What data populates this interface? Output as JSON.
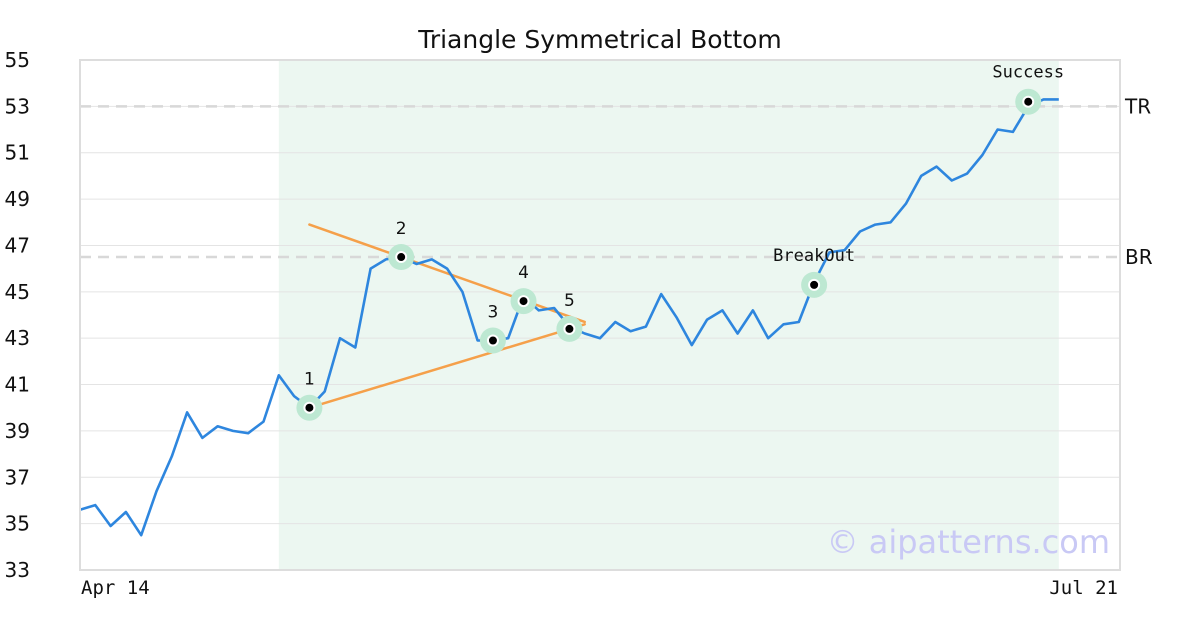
{
  "watermark": "© aipatterns.com",
  "colors": {
    "price": "#2e86de",
    "trendline": "#f5a04a",
    "highlight": "#ecf7f1",
    "marker_glow": "#bde8d2",
    "grid": "#e4e4e4",
    "level_line": "#d8d8d8",
    "frame": "#dddddd",
    "watermark": "#c9c9f5"
  },
  "chart_data": {
    "type": "line",
    "title": "Triangle Symmetrical Bottom",
    "xlabel": "",
    "ylabel": "",
    "ylim": [
      33,
      55
    ],
    "xlim": [
      0,
      68
    ],
    "yticks": [
      33,
      35,
      37,
      39,
      41,
      43,
      45,
      47,
      49,
      51,
      53,
      55
    ],
    "x_tick_labels": [
      {
        "x": 0,
        "label": "Apr 14"
      },
      {
        "x": 68,
        "label": "Jul 21"
      }
    ],
    "grid": true,
    "series": [
      {
        "values": [
          35.6,
          35.8,
          34.9,
          35.5,
          34.5,
          36.4,
          37.9,
          39.8,
          38.7,
          39.2,
          39.0,
          38.9,
          39.4,
          41.4,
          40.5,
          40.0,
          40.7,
          43.0,
          42.6,
          46.0,
          46.4,
          46.5,
          46.2,
          46.4,
          46.0,
          45.0,
          42.9,
          42.9,
          43.0,
          44.8,
          44.2,
          44.3,
          43.5,
          43.2,
          43.0,
          43.7,
          43.3,
          43.5,
          44.9,
          43.9,
          42.7,
          43.8,
          44.2,
          43.2,
          44.2,
          43.0,
          43.6,
          43.7,
          45.4,
          46.7,
          46.8,
          47.6,
          47.9,
          48.0,
          48.8,
          50.0,
          50.4,
          49.8,
          50.1,
          50.9,
          52.0,
          51.9,
          53.0,
          53.3,
          53.3
        ]
      }
    ],
    "highlight_range": [
      13,
      64
    ],
    "trendlines": [
      {
        "from": [
          15,
          47.9
        ],
        "to": [
          33,
          43.7
        ]
      },
      {
        "from": [
          15,
          40.0
        ],
        "to": [
          33,
          43.6
        ]
      }
    ],
    "levels": [
      {
        "name": "TR",
        "y": 53.0
      },
      {
        "name": "BR",
        "y": 46.5
      }
    ],
    "points": [
      {
        "label": "1",
        "x": 15,
        "y": 40.0
      },
      {
        "label": "2",
        "x": 21,
        "y": 46.5
      },
      {
        "label": "3",
        "x": 27,
        "y": 42.9
      },
      {
        "label": "4",
        "x": 29,
        "y": 44.6
      },
      {
        "label": "5",
        "x": 32,
        "y": 43.4
      }
    ],
    "annotations": [
      {
        "label": "BreakOut",
        "x": 48,
        "y": 45.3
      },
      {
        "label": "Success",
        "x": 62,
        "y": 53.2
      }
    ]
  }
}
